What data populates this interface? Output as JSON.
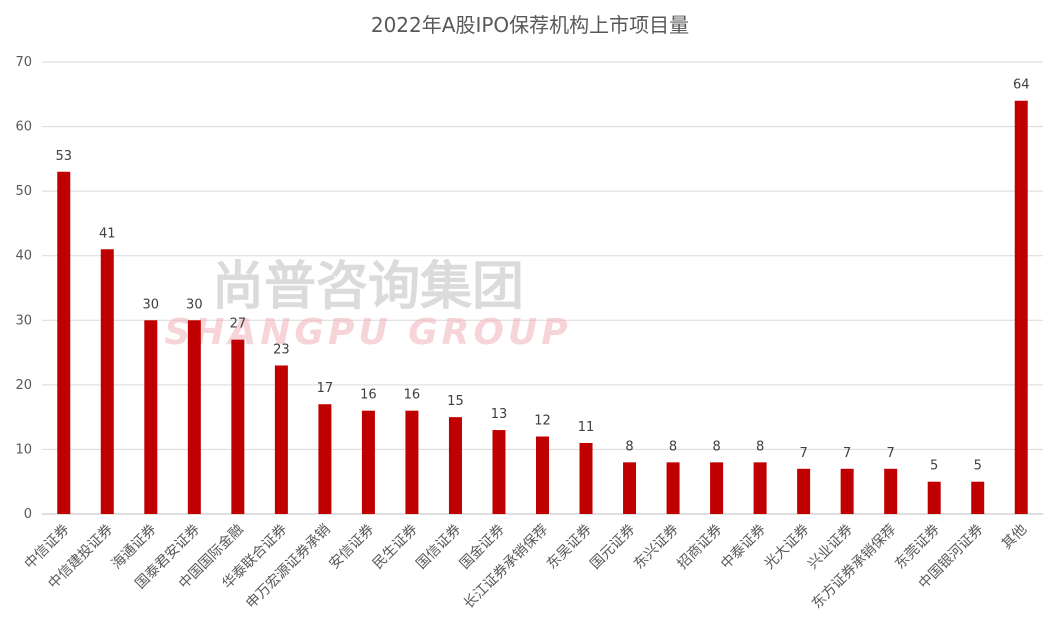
{
  "chart_data": {
    "type": "bar",
    "title": "2022年A股IPO保荐机构上市项目量",
    "xlabel": "",
    "ylabel": "",
    "ylim": [
      0,
      70
    ],
    "yticks": [
      0,
      10,
      20,
      30,
      40,
      50,
      60,
      70
    ],
    "grid": true,
    "legend": "none",
    "bar_color": "#C00000",
    "categories": [
      "中信证券",
      "中信建投证券",
      "海通证券",
      "国泰君安证券",
      "中国国际金融",
      "华泰联合证券",
      "申万宏源证券承销",
      "安信证券",
      "民生证券",
      "国信证券",
      "国金证券",
      "长江证券承销保荐",
      "东吴证券",
      "国元证券",
      "东兴证券",
      "招商证券",
      "中泰证券",
      "光大证券",
      "兴业证券",
      "东方证券承销保荐",
      "东莞证券",
      "中国银河证券",
      "其他"
    ],
    "values": [
      53,
      41,
      30,
      30,
      27,
      23,
      17,
      16,
      16,
      15,
      13,
      12,
      11,
      8,
      8,
      8,
      8,
      7,
      7,
      7,
      5,
      5,
      64
    ]
  },
  "watermark": {
    "line1": "尚普咨询集团",
    "line2": "SHANGPU GROUP"
  }
}
